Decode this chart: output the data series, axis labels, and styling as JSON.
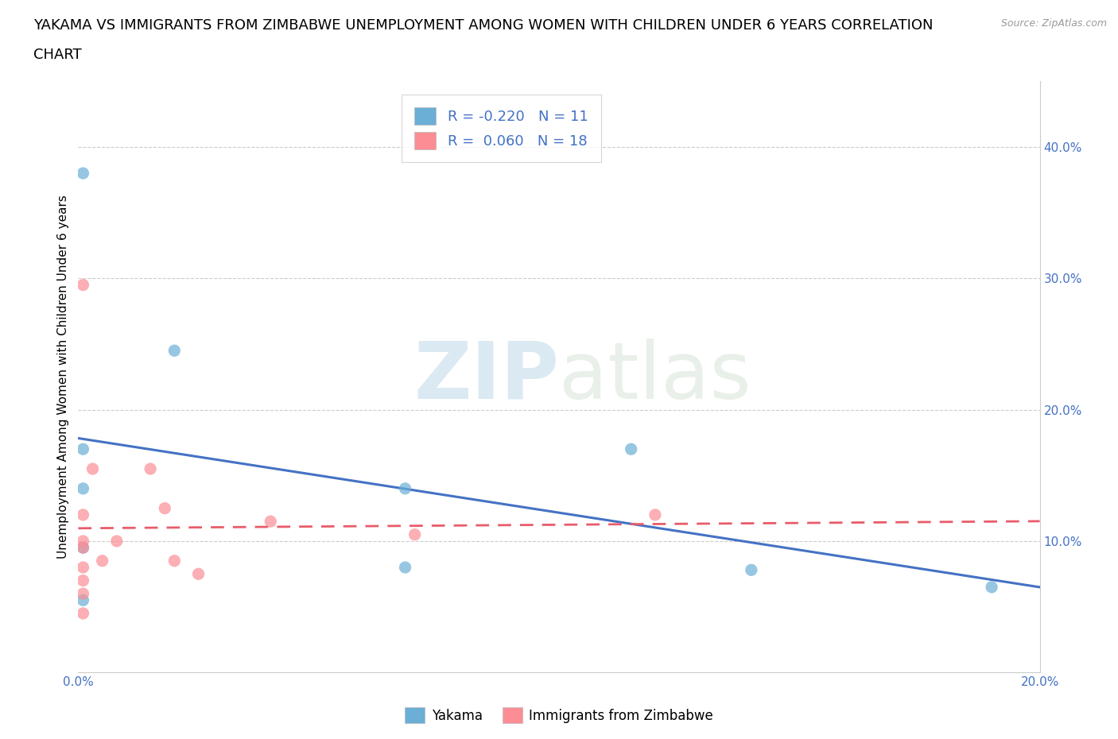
{
  "title_line1": "YAKAMA VS IMMIGRANTS FROM ZIMBABWE UNEMPLOYMENT AMONG WOMEN WITH CHILDREN UNDER 6 YEARS CORRELATION",
  "title_line2": "CHART",
  "source": "Source: ZipAtlas.com",
  "ylabel": "Unemployment Among Women with Children Under 6 years",
  "xlim": [
    0.0,
    0.2
  ],
  "ylim": [
    0.0,
    0.45
  ],
  "xticks": [
    0.0,
    0.05,
    0.1,
    0.15,
    0.2
  ],
  "yticks": [
    0.1,
    0.2,
    0.3,
    0.4
  ],
  "xtick_labels": [
    "0.0%",
    "",
    "",
    "",
    "20.0%"
  ],
  "ytick_labels": [
    "10.0%",
    "20.0%",
    "30.0%",
    "40.0%"
  ],
  "yakama_color": "#6baed6",
  "zimbabwe_color": "#fc8d94",
  "yakama_R": -0.22,
  "yakama_N": 11,
  "zimbabwe_R": 0.06,
  "zimbabwe_N": 18,
  "watermark_ZIP": "ZIP",
  "watermark_atlas": "atlas",
  "legend_label_yakama": "Yakama",
  "legend_label_zimbabwe": "Immigrants from Zimbabwe",
  "yakama_x": [
    0.001,
    0.001,
    0.02,
    0.001,
    0.068,
    0.001,
    0.068,
    0.115,
    0.19,
    0.14,
    0.001
  ],
  "yakama_y": [
    0.38,
    0.17,
    0.245,
    0.14,
    0.14,
    0.095,
    0.08,
    0.17,
    0.065,
    0.078,
    0.055
  ],
  "zimbabwe_x": [
    0.001,
    0.001,
    0.001,
    0.001,
    0.001,
    0.001,
    0.001,
    0.001,
    0.003,
    0.005,
    0.008,
    0.015,
    0.018,
    0.02,
    0.025,
    0.04,
    0.07,
    0.12
  ],
  "zimbabwe_y": [
    0.295,
    0.12,
    0.1,
    0.095,
    0.08,
    0.07,
    0.06,
    0.045,
    0.155,
    0.085,
    0.1,
    0.155,
    0.125,
    0.085,
    0.075,
    0.115,
    0.105,
    0.12
  ],
  "bg_color": "#ffffff",
  "plot_bg_color": "#ffffff",
  "grid_color": "#cccccc",
  "trend_color_yakama": "#4472c4",
  "trend_color_zimbabwe": "#e85c6a",
  "marker_size": 11,
  "title_fontsize": 13,
  "axis_label_fontsize": 11,
  "tick_fontsize": 11,
  "legend_fontsize": 13
}
